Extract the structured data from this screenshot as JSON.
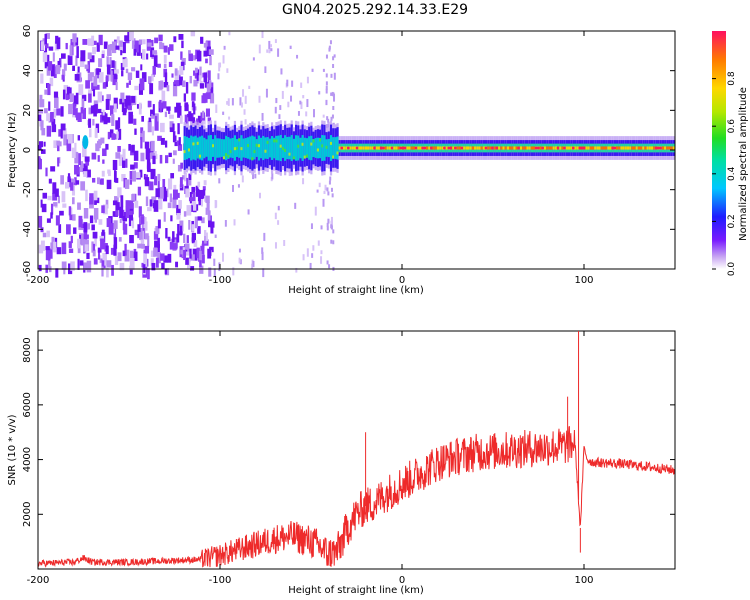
{
  "title": "GN04.2025.292.14.33.E29",
  "colors": {
    "snr_line": "#ee2a2a",
    "frame": "#000000"
  },
  "chart_data": [
    {
      "type": "heatmap",
      "xlabel": "Height of straight line (km)",
      "ylabel": "Frequency (Hz)",
      "xlim": [
        -200,
        150
      ],
      "ylim": [
        -60,
        60
      ],
      "xticks": [
        -200,
        -100,
        0,
        100
      ],
      "yticks": [
        -60,
        -40,
        -20,
        0,
        20,
        40,
        60
      ],
      "colorbar": {
        "label": "Normalized spectral amplitude",
        "range": [
          0.0,
          1.0
        ],
        "ticks": [
          "0.0",
          "0.2",
          "0.4",
          "0.6",
          "0.8"
        ]
      },
      "noise_region_x": [
        -200,
        -105
      ],
      "sparse_region_x": [
        -105,
        -35
      ],
      "band_region_x": [
        -120,
        150
      ],
      "band_center_hz": 1,
      "band_halfwidth_hz": [
        10,
        3
      ]
    },
    {
      "type": "line",
      "xlabel": "Height of straight line (km)",
      "ylabel": "SNR (10 * v/v)",
      "xlim": [
        -200,
        150
      ],
      "ylim": [
        0,
        8700
      ],
      "xticks": [
        -200,
        -100,
        0,
        100
      ],
      "yticks": [
        2000,
        4000,
        6000,
        8000
      ],
      "series": [
        {
          "name": "SNR",
          "x": [
            -200,
            -180,
            -175,
            -170,
            -150,
            -130,
            -110,
            -100,
            -90,
            -80,
            -70,
            -60,
            -50,
            -45,
            -40,
            -35,
            -30,
            -25,
            -20,
            -15,
            -10,
            -5,
            0,
            10,
            20,
            30,
            40,
            50,
            60,
            70,
            80,
            90,
            95,
            98,
            100,
            102,
            105,
            120,
            140,
            150
          ],
          "y": [
            200,
            250,
            400,
            250,
            250,
            300,
            350,
            500,
            700,
            900,
            1100,
            1200,
            1000,
            800,
            500,
            700,
            1500,
            2000,
            2300,
            2400,
            2700,
            2900,
            3100,
            3500,
            3900,
            4100,
            4250,
            4300,
            4350,
            4400,
            4450,
            4500,
            4600,
            1500,
            4400,
            4000,
            3900,
            3850,
            3700,
            3600
          ]
        }
      ],
      "spikes": [
        {
          "x": -20,
          "y": 5000
        },
        {
          "x": 97,
          "y": 8700
        },
        {
          "x": 91,
          "y": 6300
        },
        {
          "x": 98,
          "y": 600
        }
      ]
    }
  ]
}
